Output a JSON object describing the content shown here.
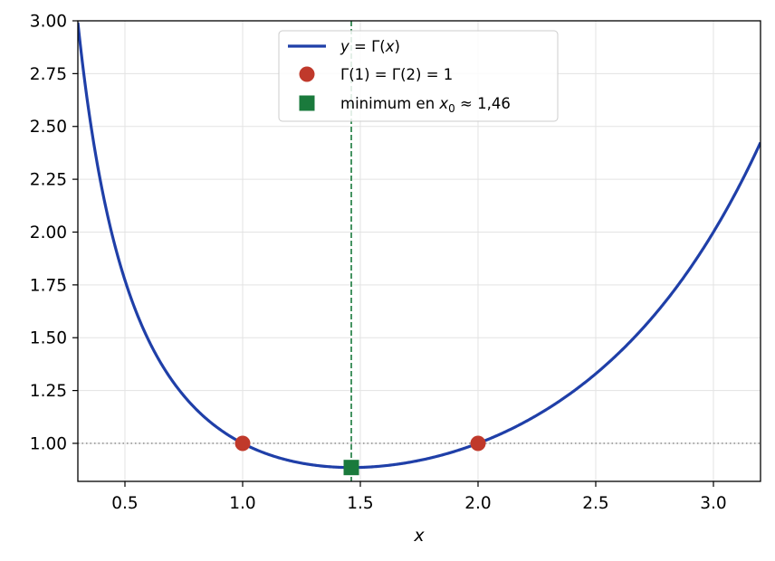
{
  "chart_data": {
    "type": "line",
    "xlabel": "x",
    "ylabel": "",
    "xlim": [
      0.3,
      3.2
    ],
    "ylim": [
      0.82,
      3.0
    ],
    "x_ticks": [
      "0.5",
      "1.0",
      "1.5",
      "2.0",
      "2.5",
      "3.0"
    ],
    "y_ticks": [
      "1.00",
      "1.25",
      "1.50",
      "1.75",
      "2.00",
      "2.25",
      "2.50",
      "2.75",
      "3.00"
    ],
    "grid": true,
    "legend_position": "upper-center",
    "colors": {
      "curve": "#1f3fa8",
      "points": "#c0392b",
      "minimum": "#1a7a3c",
      "reference_line": "#808080"
    },
    "series": [
      {
        "name": "y = Γ(x)",
        "kind": "line",
        "function": "gamma",
        "x_range": [
          0.3,
          3.2
        ]
      },
      {
        "name": "Γ(1) = Γ(2) = 1",
        "kind": "points",
        "points": [
          [
            1.0,
            1.0
          ],
          [
            2.0,
            1.0
          ]
        ]
      },
      {
        "name": "minimum en x0 ≈ 1,46",
        "kind": "marker",
        "points": [
          [
            1.4616,
            0.8856
          ]
        ]
      }
    ],
    "reference_lines": [
      {
        "orientation": "horizontal",
        "value": 1.0,
        "style": "dotted"
      },
      {
        "orientation": "vertical",
        "value": 1.4616,
        "style": "dashed"
      }
    ],
    "legend": {
      "curve_label_parts": [
        "y",
        " = Γ(",
        "x",
        ")"
      ],
      "points_label": "Γ(1) = Γ(2) = 1",
      "minimum_label_prefix": "minimum en ",
      "minimum_label_var": "x",
      "minimum_label_sub": "0",
      "minimum_label_suffix": " ≈ 1,46"
    }
  }
}
